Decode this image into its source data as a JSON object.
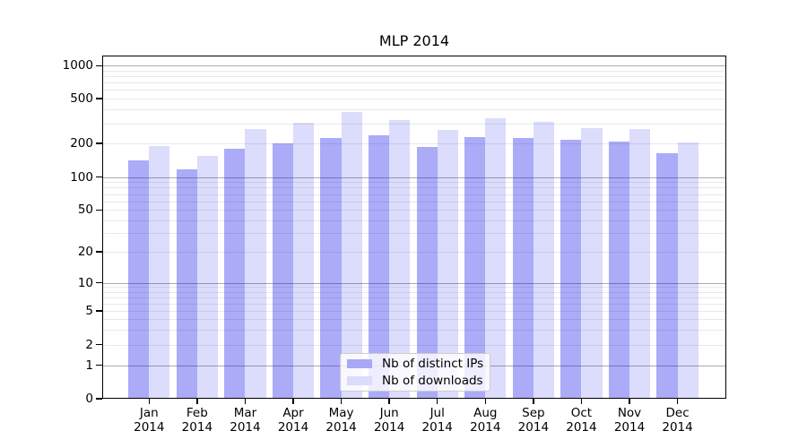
{
  "title": "MLP 2014",
  "chart_data": {
    "type": "bar",
    "title": "MLP 2014",
    "y_scale": "symlog",
    "grid": true,
    "legend_position": "lower center",
    "y_tick_labels": [
      "0",
      "1",
      "2",
      "5",
      "10",
      "20",
      "50",
      "100",
      "200",
      "500",
      "1000"
    ],
    "y_tick_values": [
      0,
      1,
      2,
      5,
      10,
      20,
      50,
      100,
      200,
      500,
      1000
    ],
    "categories": [
      {
        "month": "Jan",
        "year": "2014"
      },
      {
        "month": "Feb",
        "year": "2014"
      },
      {
        "month": "Mar",
        "year": "2014"
      },
      {
        "month": "Apr",
        "year": "2014"
      },
      {
        "month": "May",
        "year": "2014"
      },
      {
        "month": "Jun",
        "year": "2014"
      },
      {
        "month": "Jul",
        "year": "2014"
      },
      {
        "month": "Aug",
        "year": "2014"
      },
      {
        "month": "Sep",
        "year": "2014"
      },
      {
        "month": "Oct",
        "year": "2014"
      },
      {
        "month": "Nov",
        "year": "2014"
      },
      {
        "month": "Dec",
        "year": "2014"
      }
    ],
    "series": [
      {
        "name": "Nb of distinct IPs",
        "color": "#a8a8f6",
        "bar_fill": "rgba(10,10,235,0.34)",
        "values": [
          140,
          117,
          180,
          200,
          222,
          236,
          187,
          226,
          223,
          215,
          207,
          163
        ]
      },
      {
        "name": "Nb of downloads",
        "color": "#dbdbfa",
        "bar_fill": "rgba(10,10,235,0.14)",
        "values": [
          190,
          155,
          270,
          306,
          380,
          320,
          263,
          334,
          310,
          275,
          270,
          205
        ]
      }
    ]
  }
}
